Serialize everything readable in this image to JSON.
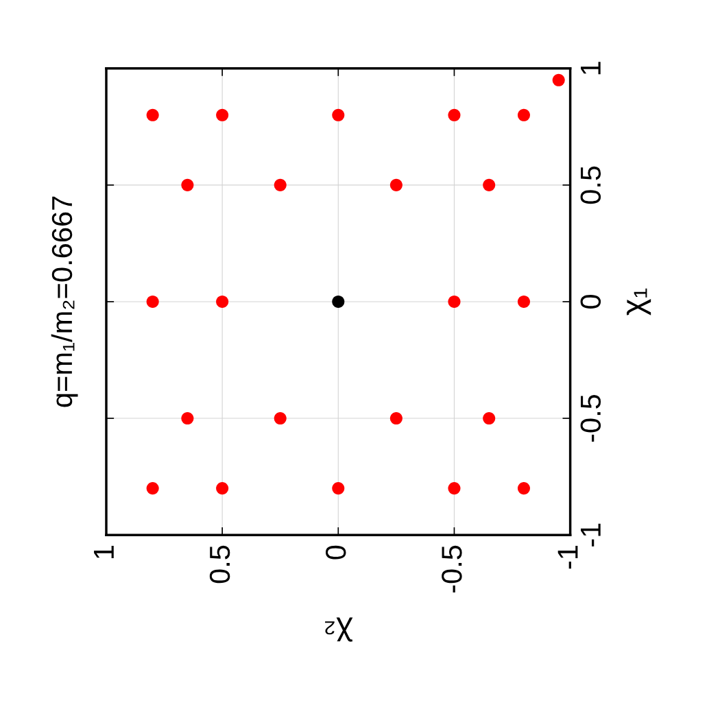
{
  "chart_data": {
    "type": "scatter",
    "title": "q=m₁/m₂=0.6667",
    "xlabel": "χ₂",
    "ylabel": "χ₁",
    "series": [
      {
        "color": "#ff0000",
        "x": [
          0.8,
          0.5,
          0,
          -0.5,
          -0.8,
          0.65,
          0.25,
          -0.25,
          -0.65,
          0.8,
          0.5,
          -0.5,
          -0.8,
          0.65,
          0.25,
          -0.25,
          -0.65,
          0.8,
          0.5,
          0,
          -0.5,
          -0.8,
          -0.95
        ],
        "values": [
          0.8,
          0.8,
          0.8,
          0.8,
          0.8,
          0.5,
          0.5,
          0.5,
          0.5,
          0,
          0,
          0,
          0,
          -0.5,
          -0.5,
          -0.5,
          -0.5,
          -0.8,
          -0.8,
          -0.8,
          -0.8,
          -0.8,
          0.95
        ]
      },
      {
        "color": "#000000",
        "x": [
          0
        ],
        "values": [
          0
        ]
      }
    ],
    "xlim": [
      1,
      -1
    ],
    "ylim": [
      -1,
      1
    ],
    "xticks": [
      1,
      0.5,
      0,
      -0.5,
      -1
    ],
    "yticks": [
      -1,
      -0.5,
      0,
      0.5,
      1
    ],
    "grid": true,
    "marker": "circle",
    "legend": false
  }
}
